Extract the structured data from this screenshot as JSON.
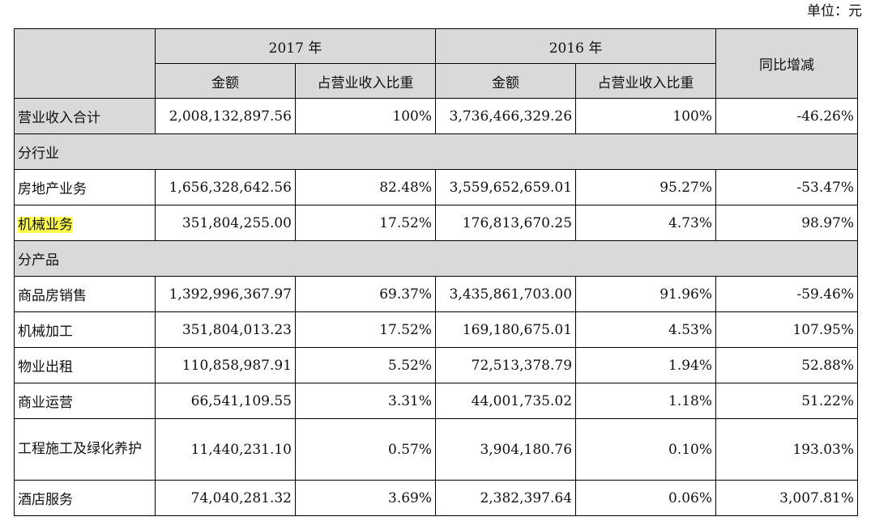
{
  "unit_label": "单位：元",
  "header": {
    "year_2017": "2017 年",
    "year_2016": "2016 年",
    "yoy": "同比增减",
    "amount": "金额",
    "ratio": "占营业收入比重"
  },
  "total": {
    "label": "营业收入合计",
    "amount_2017": "2,008,132,897.56",
    "ratio_2017": "100%",
    "amount_2016": "3,736,466,329.26",
    "ratio_2016": "100%",
    "yoy": "-46.26%"
  },
  "section_industry": "分行业",
  "industry_rows": [
    {
      "label": "房地产业务",
      "amount_2017": "1,656,328,642.56",
      "ratio_2017": "82.48%",
      "amount_2016": "3,559,652,659.01",
      "ratio_2016": "95.27%",
      "yoy": "-53.47%"
    },
    {
      "label": "机械业务",
      "amount_2017": "351,804,255.00",
      "ratio_2017": "17.52%",
      "amount_2016": "176,813,670.25",
      "ratio_2016": "4.73%",
      "yoy": "98.97%"
    }
  ],
  "highlight_color": "#ffff4d",
  "section_product": "分产品",
  "product_rows": [
    {
      "label": "商品房销售",
      "amount_2017": "1,392,996,367.97",
      "ratio_2017": "69.37%",
      "amount_2016": "3,435,861,703.00",
      "ratio_2016": "91.96%",
      "yoy": "-59.46%"
    },
    {
      "label": "机械加工",
      "amount_2017": "351,804,013.23",
      "ratio_2017": "17.52%",
      "amount_2016": "169,180,675.01",
      "ratio_2016": "4.53%",
      "yoy": "107.95%"
    },
    {
      "label": "物业出租",
      "amount_2017": "110,858,987.91",
      "ratio_2017": "5.52%",
      "amount_2016": "72,513,378.79",
      "ratio_2016": "1.94%",
      "yoy": "52.88%"
    },
    {
      "label": "商业运营",
      "amount_2017": "66,541,109.55",
      "ratio_2017": "3.31%",
      "amount_2016": "44,001,735.02",
      "ratio_2016": "1.18%",
      "yoy": "51.22%"
    },
    {
      "label": "工程施工及绿化养护",
      "amount_2017": "11,440,231.10",
      "ratio_2017": "0.57%",
      "amount_2016": "3,904,180.76",
      "ratio_2016": "0.10%",
      "yoy": "193.03%"
    },
    {
      "label": "酒店服务",
      "amount_2017": "74,040,281.32",
      "ratio_2017": "3.69%",
      "amount_2016": "2,382,397.64",
      "ratio_2016": "0.06%",
      "yoy": "3,007.81%"
    }
  ]
}
